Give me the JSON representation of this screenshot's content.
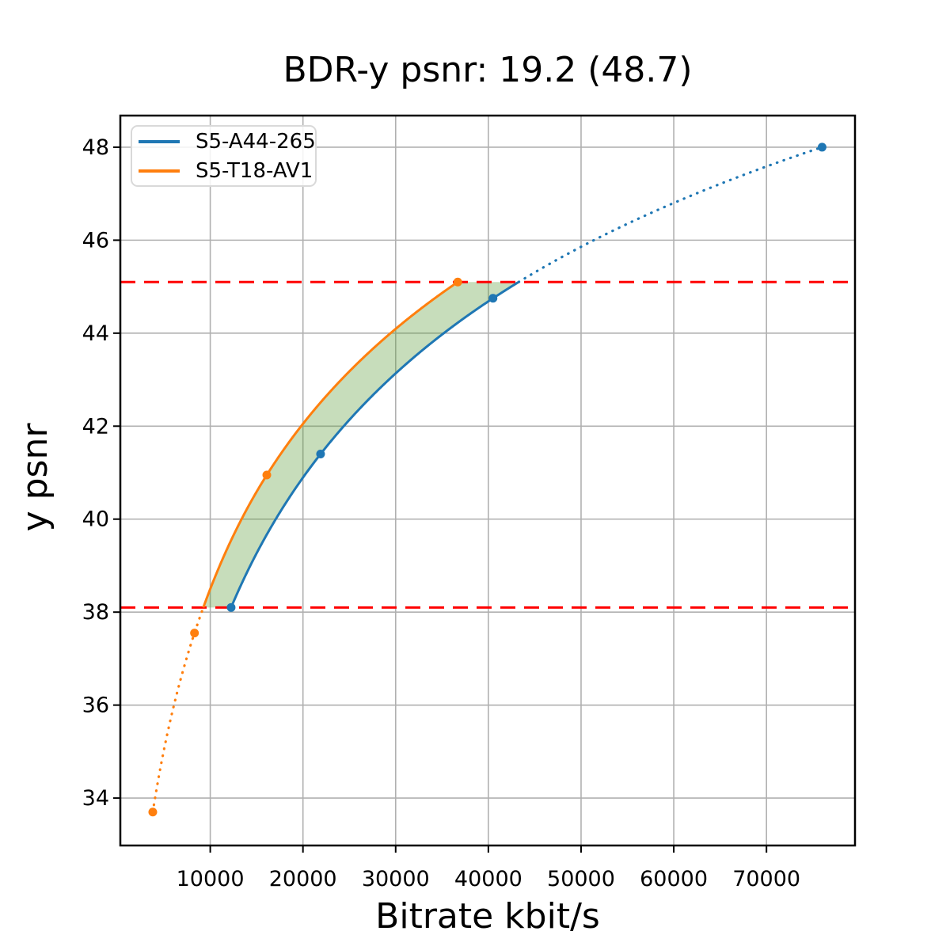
{
  "chart_data": {
    "type": "line",
    "title": "BDR-y psnr: 19.2 (48.7)",
    "xlabel": "Bitrate kbit/s",
    "ylabel": "y psnr",
    "xlim": [
      300,
      79550
    ],
    "ylim": [
      32.98,
      48.68
    ],
    "xticks": [
      10000,
      20000,
      30000,
      40000,
      50000,
      60000,
      70000
    ],
    "yticks": [
      34,
      36,
      38,
      40,
      42,
      44,
      46,
      48
    ],
    "grid": true,
    "grid_color": "#b0b0b0",
    "legend_position": "upper left",
    "interpolation": "monotone cubic on log10(bitrate)",
    "series": [
      {
        "name": "S5-A44-265",
        "color": "#1f77b4",
        "x": [
          12250,
          21900,
          40500,
          76000
        ],
        "y": [
          38.1,
          41.4,
          44.75,
          48.0
        ],
        "style": "solid inside overlap region, dotted above upper bound"
      },
      {
        "name": "S5-T18-AV1",
        "color": "#ff7f0e",
        "x": [
          3800,
          8300,
          16100,
          36700
        ],
        "y": [
          33.7,
          37.55,
          40.95,
          45.1
        ],
        "style": "dotted below lower bound, solid inside overlap region"
      }
    ],
    "overlap_lines": {
      "lower_psnr": 38.1,
      "upper_psnr": 45.1,
      "color": "#ff0000",
      "style": "dashed"
    },
    "shaded_region": {
      "between": [
        "S5-T18-AV1",
        "S5-A44-265"
      ],
      "psnr_range": [
        38.1,
        45.1
      ],
      "fill_color": "#5f9e3c",
      "opacity": 0.35
    }
  }
}
